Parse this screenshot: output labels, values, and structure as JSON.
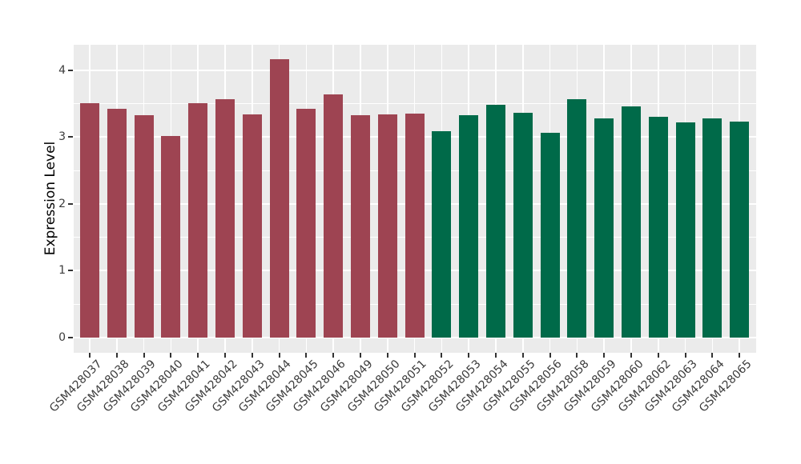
{
  "chart_data": {
    "type": "bar",
    "title": "",
    "xlabel": "",
    "ylabel": "Expression Level",
    "ylim": [
      0,
      4.38
    ],
    "yticks": [
      0,
      1,
      2,
      3,
      4
    ],
    "yticks_minor": [
      0.5,
      1.5,
      2.5,
      3.5
    ],
    "grid": true,
    "legend": false,
    "panel_background": "#EBEBEB",
    "gridline_color": "#FFFFFF",
    "tick_mark_color": "#333333",
    "tick_label_color": "#3c3c3c",
    "axis_title_color": "#000000",
    "group_colors": [
      "#9E4452",
      "#006A49"
    ],
    "categories": [
      "GSM428037",
      "GSM428038",
      "GSM428039",
      "GSM428040",
      "GSM428041",
      "GSM428042",
      "GSM428043",
      "GSM428044",
      "GSM428045",
      "GSM428046",
      "GSM428049",
      "GSM428050",
      "GSM428051",
      "GSM428052",
      "GSM428053",
      "GSM428054",
      "GSM428055",
      "GSM428056",
      "GSM428058",
      "GSM428059",
      "GSM428060",
      "GSM428062",
      "GSM428063",
      "GSM428064",
      "GSM428065"
    ],
    "values": [
      3.5,
      3.42,
      3.33,
      3.01,
      3.5,
      3.57,
      3.34,
      4.16,
      3.42,
      3.64,
      3.33,
      3.34,
      3.35,
      3.09,
      3.32,
      3.48,
      3.36,
      3.06,
      3.56,
      3.28,
      3.46,
      3.3,
      3.22,
      3.28,
      3.23
    ],
    "groups": [
      0,
      0,
      0,
      0,
      0,
      0,
      0,
      0,
      0,
      0,
      0,
      0,
      0,
      1,
      1,
      1,
      1,
      1,
      1,
      1,
      1,
      1,
      1,
      1,
      1
    ]
  }
}
